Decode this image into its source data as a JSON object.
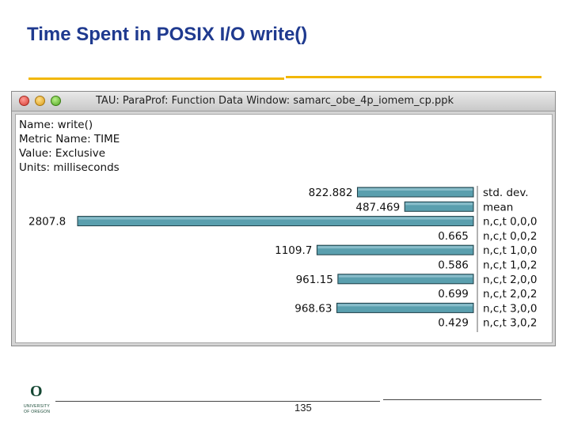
{
  "slide": {
    "title": "Time Spent in POSIX I/O write()",
    "page_number": "135"
  },
  "logo": {
    "letter": "O",
    "line1": "UNIVERSITY",
    "line2": "OF OREGON"
  },
  "window": {
    "title": "TAU: ParaProf: Function Data Window: samarc_obe_4p_iomem_cp.ppk"
  },
  "info": {
    "name": "Name: write()",
    "metric": "Metric Name: TIME",
    "value": "Value: Exclusive",
    "units": "Units: milliseconds"
  },
  "colors": {
    "bar": "#5a9fae",
    "title": "#1f3a8f",
    "rule": "#f2b705"
  },
  "chart_data": {
    "type": "bar",
    "orientation": "horizontal",
    "categories": [
      "std. dev.",
      "mean",
      "n,c,t 0,0,0",
      "n,c,t 0,0,2",
      "n,c,t 1,0,0",
      "n,c,t 1,0,2",
      "n,c,t 2,0,0",
      "n,c,t 2,0,2",
      "n,c,t 3,0,0",
      "n,c,t 3,0,2"
    ],
    "values": [
      822.882,
      487.469,
      2807.8,
      0.665,
      1109.7,
      0.586,
      961.15,
      0.699,
      968.63,
      0.429
    ],
    "value_labels": [
      "822.882",
      "487.469",
      "2807.8",
      "0.665",
      "1109.7",
      "0.586",
      "961.15",
      "0.699",
      "968.63",
      "0.429"
    ]
  }
}
